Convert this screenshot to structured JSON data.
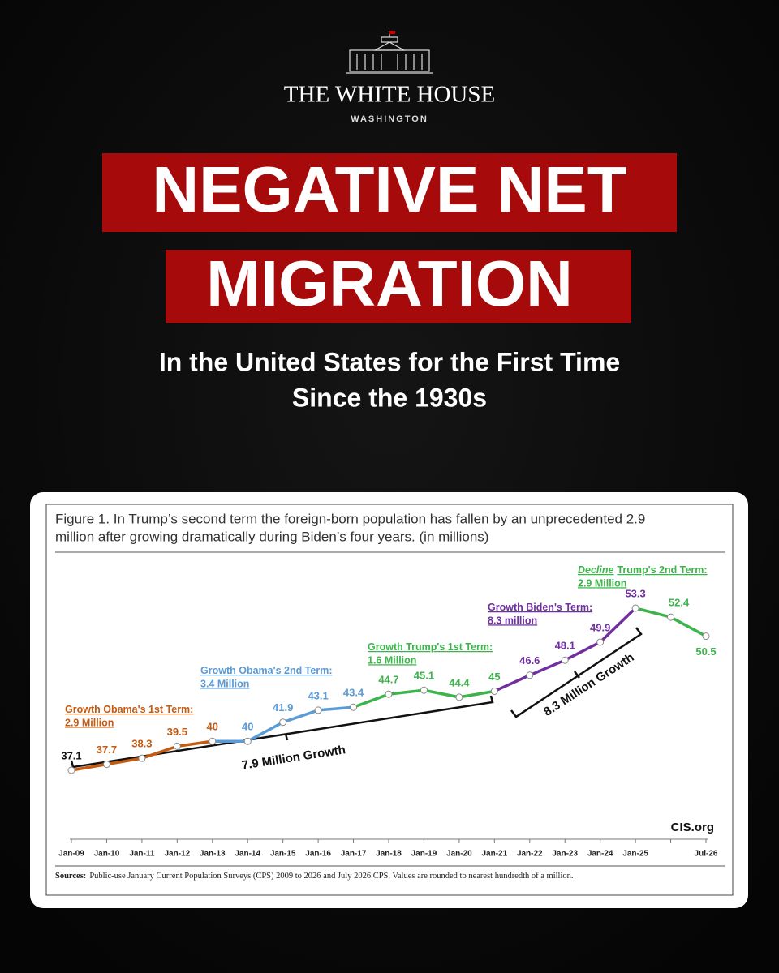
{
  "header": {
    "brand": "THE WHITE HOUSE",
    "place": "WASHINGTON",
    "headline": [
      "NEGATIVE NET",
      "MIGRATION"
    ],
    "subtitle": [
      "In the United States for the First Time",
      "Since the 1930s"
    ]
  },
  "chart_data": {
    "type": "line",
    "title": [
      "Figure 1. In Trump’s second term the foreign-born population has fallen by an unprecedented 2.9",
      "million after growing dramatically during Biden’s four years. (in millions)"
    ],
    "categories": [
      "Jan-09",
      "Jan-10",
      "Jan-11",
      "Jan-12",
      "Jan-13",
      "Jan-14",
      "Jan-15",
      "Jan-16",
      "Jan-17",
      "Jan-18",
      "Jan-19",
      "Jan-20",
      "Jan-21",
      "Jan-22",
      "Jan-23",
      "Jan-24",
      "Jan-25",
      null,
      "Jul-26"
    ],
    "values": [
      37.1,
      37.7,
      38.3,
      39.5,
      40,
      40,
      41.9,
      43.1,
      43.4,
      44.7,
      45.1,
      44.4,
      45,
      46.6,
      48.1,
      49.9,
      53.3,
      52.4,
      50.5
    ],
    "segment_colors": [
      "#c55a11",
      "#c55a11",
      "#c55a11",
      "#c55a11",
      "#5b9bd5",
      "#5b9bd5",
      "#5b9bd5",
      "#5b9bd5",
      "#3cb44b",
      "#3cb44b",
      "#3cb44b",
      "#3cb44b",
      "#7030a0",
      "#7030a0",
      "#7030a0",
      "#7030a0",
      "#3cb44b",
      "#3cb44b"
    ],
    "label_colors": [
      "#111111",
      "#c55a11",
      "#c55a11",
      "#c55a11",
      "#c55a11",
      "#5b9bd5",
      "#5b9bd5",
      "#5b9bd5",
      "#5b9bd5",
      "#3cb44b",
      "#3cb44b",
      "#3cb44b",
      "#3cb44b",
      "#7030a0",
      "#7030a0",
      "#7030a0",
      "#7030a0",
      "#3cb44b",
      "#3cb44b"
    ],
    "annotations": [
      {
        "lines": [
          "Growth Obama's 1st Term:",
          "2.9 Million"
        ],
        "color": "#c55a11"
      },
      {
        "lines": [
          "Growth Obama's 2nd Term:",
          "3.4 Million"
        ],
        "color": "#5b9bd5"
      },
      {
        "lines": [
          "Growth Trump's 1st Term:",
          "1.6 Million"
        ],
        "color": "#3cb44b"
      },
      {
        "lines": [
          "Growth Biden's Term:",
          "8.3 million"
        ],
        "color": "#7030a0"
      },
      {
        "lead": "Decline",
        "lines": [
          "Trump's 2nd Term:",
          "2.9 Million"
        ],
        "color": "#3cb44b"
      }
    ],
    "brackets": [
      "7.9 Million Growth",
      "8.3 Million Growth"
    ],
    "credit": "CIS.org",
    "source_label": "Sources:",
    "source": "Public-use January Current Population Surveys (CPS) 2009 to 2026 and July 2026 CPS. Values are rounded to nearest hundredth of a million."
  }
}
